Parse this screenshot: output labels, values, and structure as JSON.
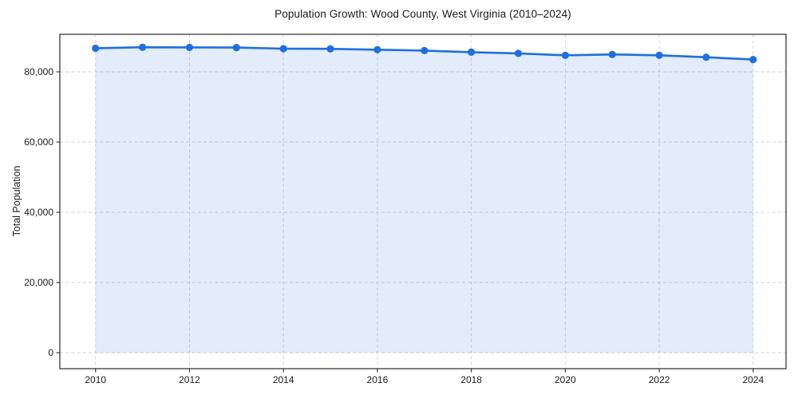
{
  "chart_data": {
    "type": "line",
    "title": "Population Growth: Wood County, West Virginia (2010–2024)",
    "xlabel": "",
    "ylabel": "Total Population",
    "x": [
      2010,
      2011,
      2012,
      2013,
      2014,
      2015,
      2016,
      2017,
      2018,
      2019,
      2020,
      2021,
      2022,
      2023,
      2024
    ],
    "values": [
      86700,
      87000,
      86950,
      86900,
      86600,
      86550,
      86300,
      86050,
      85600,
      85250,
      84700,
      84950,
      84700,
      84150,
      83500
    ],
    "series_name": "Total Population",
    "xlim": [
      2009.24,
      2024.7
    ],
    "ylim": [
      -4545,
      90680
    ],
    "xticks": [
      2010,
      2012,
      2014,
      2016,
      2018,
      2020,
      2022,
      2024
    ],
    "yticks": [
      0,
      20000,
      40000,
      60000,
      80000
    ],
    "ytick_labels": [
      "0",
      "20,000",
      "40,000",
      "60,000",
      "80,000"
    ],
    "grid": true,
    "grid_style": "dashed",
    "legend": false,
    "line_color": "#1f6fe0",
    "fill_color": "rgba(31, 111, 224, 0.13)",
    "marker": "circle"
  }
}
